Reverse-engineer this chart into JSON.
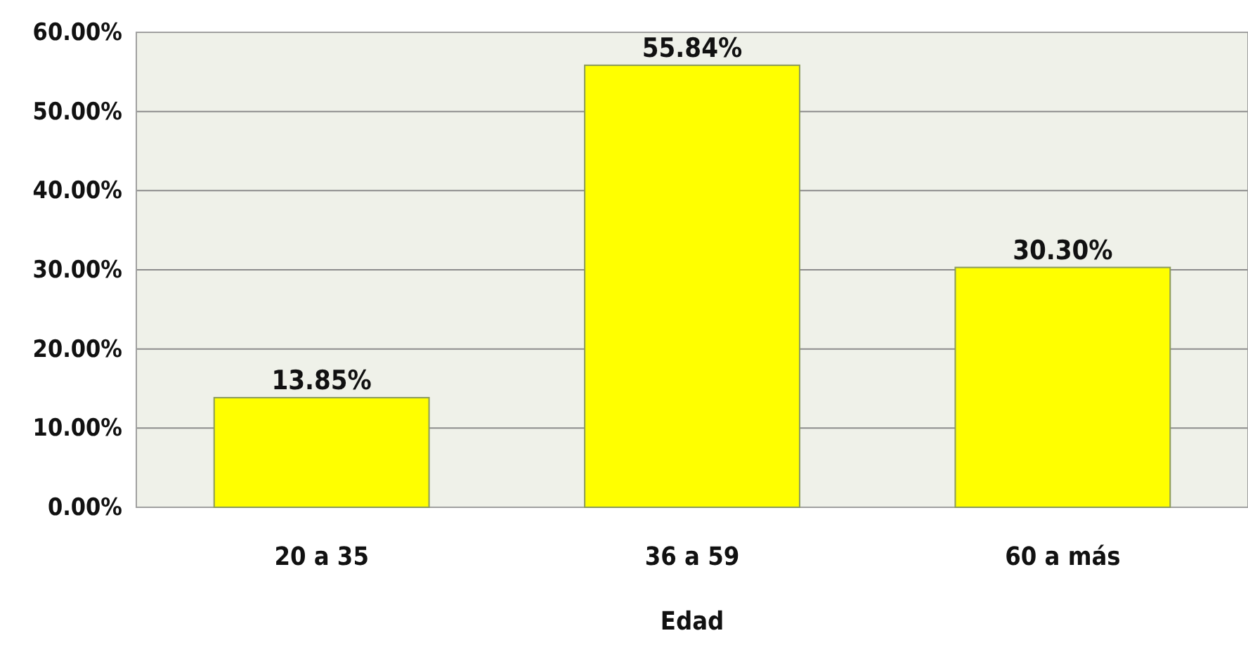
{
  "chart_data": {
    "type": "bar",
    "xlabel": "Edad",
    "categories": [
      "20 a 35",
      "36 a 59",
      "60 a más"
    ],
    "values": [
      13.85,
      55.84,
      30.3
    ],
    "value_labels": [
      "13.85%",
      "55.84%",
      "30.30%"
    ],
    "color": "#ffff00",
    "ylim": [
      0,
      60
    ],
    "yticks": [
      {
        "value": 0,
        "label": "0.00%"
      },
      {
        "value": 10,
        "label": "10.00%"
      },
      {
        "value": 20,
        "label": "20.00%"
      },
      {
        "value": 30,
        "label": "30.00%"
      },
      {
        "value": 40,
        "label": "40.00%"
      },
      {
        "value": 50,
        "label": "50.00%"
      },
      {
        "value": 60,
        "label": "60.00%"
      }
    ],
    "grid": "y"
  }
}
